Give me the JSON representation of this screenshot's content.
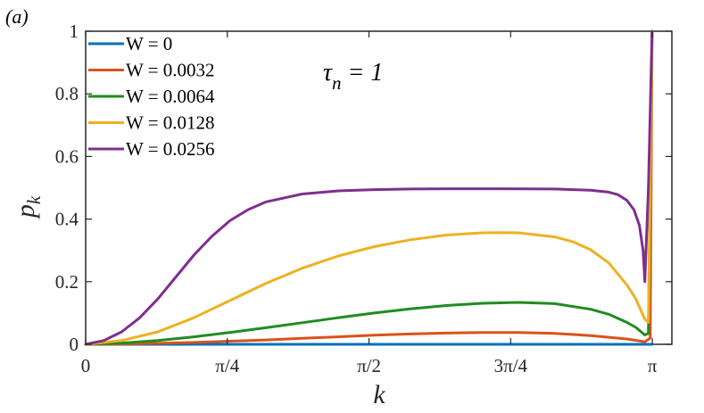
{
  "panel_label": "(a)",
  "annotation": {
    "main": "τ",
    "sub": "n",
    "rest": " = 1"
  },
  "chart_data": {
    "type": "line",
    "xlabel": "k",
    "ylabel_main": "p",
    "ylabel_sub": "k",
    "xlim": [
      0,
      3.25
    ],
    "ylim": [
      0,
      1
    ],
    "x_ticks": [
      {
        "value": 0,
        "label": "0"
      },
      {
        "value": 0.7854,
        "label": "π/4"
      },
      {
        "value": 1.5708,
        "label": "π/2"
      },
      {
        "value": 2.3562,
        "label": "3π/4"
      },
      {
        "value": 3.1416,
        "label": "π"
      }
    ],
    "y_ticks": [
      {
        "value": 0,
        "label": "0"
      },
      {
        "value": 0.2,
        "label": "0.2"
      },
      {
        "value": 0.4,
        "label": "0.4"
      },
      {
        "value": 0.6,
        "label": "0.6"
      },
      {
        "value": 0.8,
        "label": "0.8"
      },
      {
        "value": 1,
        "label": "1"
      }
    ],
    "grid": false,
    "legend_position": "top-left",
    "series": [
      {
        "name": "W = 0",
        "color": "#0072BD",
        "x": [
          0,
          0.5,
          1.0,
          1.5,
          2.0,
          2.5,
          3.0,
          3.14
        ],
        "y": [
          0,
          0,
          0,
          0,
          0,
          0,
          0,
          0
        ]
      },
      {
        "name": "W = 0.0032",
        "color": "#D95319",
        "x": [
          0,
          0.2,
          0.4,
          0.6,
          0.8,
          1.0,
          1.2,
          1.4,
          1.6,
          1.8,
          2.0,
          2.2,
          2.4,
          2.6,
          2.8,
          3.0,
          3.1,
          3.13,
          3.14
        ],
        "y": [
          0,
          0.001,
          0.003,
          0.006,
          0.01,
          0.014,
          0.019,
          0.024,
          0.029,
          0.033,
          0.036,
          0.038,
          0.038,
          0.035,
          0.028,
          0.017,
          0.008,
          0.02,
          1.0
        ]
      },
      {
        "name": "W = 0.0064",
        "color": "#1F8C1F",
        "x": [
          0,
          0.2,
          0.4,
          0.6,
          0.8,
          1.0,
          1.2,
          1.4,
          1.6,
          1.8,
          2.0,
          2.2,
          2.4,
          2.6,
          2.8,
          2.9,
          3.0,
          3.05,
          3.1,
          3.12,
          3.14
        ],
        "y": [
          0,
          0.004,
          0.012,
          0.024,
          0.038,
          0.053,
          0.069,
          0.085,
          0.1,
          0.113,
          0.124,
          0.131,
          0.134,
          0.13,
          0.112,
          0.096,
          0.07,
          0.054,
          0.03,
          0.035,
          1.0
        ]
      },
      {
        "name": "W = 0.0128",
        "color": "#EDB120",
        "x": [
          0,
          0.2,
          0.4,
          0.6,
          0.8,
          1.0,
          1.2,
          1.4,
          1.6,
          1.8,
          2.0,
          2.2,
          2.3,
          2.4,
          2.6,
          2.7,
          2.8,
          2.9,
          3.0,
          3.05,
          3.1,
          3.12,
          3.14
        ],
        "y": [
          0,
          0.012,
          0.04,
          0.085,
          0.14,
          0.195,
          0.243,
          0.282,
          0.312,
          0.334,
          0.349,
          0.356,
          0.357,
          0.356,
          0.343,
          0.328,
          0.302,
          0.26,
          0.19,
          0.145,
          0.08,
          0.07,
          1.0
        ]
      },
      {
        "name": "W = 0.0256",
        "color": "#7E2F8E",
        "x": [
          0,
          0.1,
          0.2,
          0.3,
          0.4,
          0.5,
          0.6,
          0.7,
          0.8,
          0.9,
          1.0,
          1.2,
          1.4,
          1.6,
          1.8,
          2.0,
          2.3,
          2.6,
          2.8,
          2.9,
          2.95,
          3.0,
          3.04,
          3.07,
          3.09,
          3.1,
          3.12,
          3.14
        ],
        "y": [
          0,
          0.012,
          0.04,
          0.085,
          0.145,
          0.215,
          0.285,
          0.345,
          0.395,
          0.43,
          0.455,
          0.48,
          0.49,
          0.494,
          0.496,
          0.497,
          0.497,
          0.496,
          0.492,
          0.486,
          0.478,
          0.46,
          0.43,
          0.38,
          0.3,
          0.2,
          0.5,
          1.0
        ]
      }
    ]
  }
}
